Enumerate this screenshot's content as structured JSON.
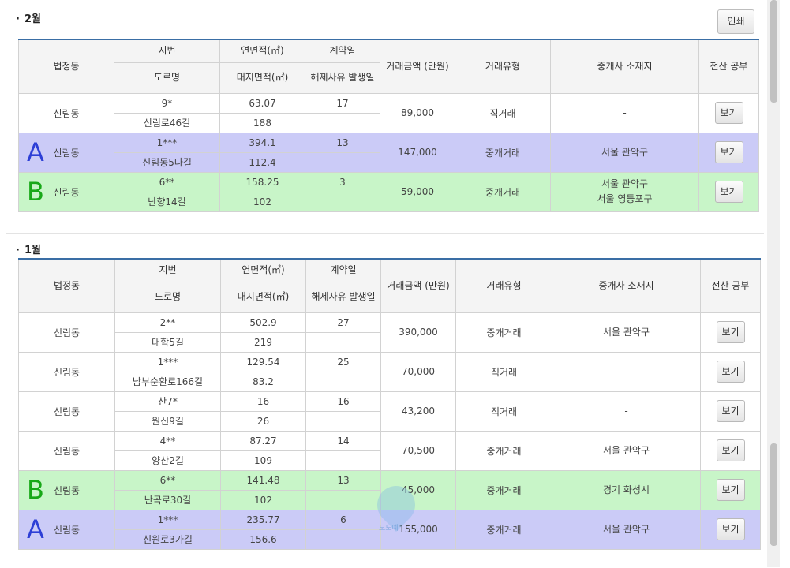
{
  "sections": [
    {
      "title": "2월",
      "print_label": "인쇄",
      "headers": {
        "dong": "법정동",
        "jibun": "지번",
        "road": "도로명",
        "area": "연면적(㎡)",
        "land_area": "대지면적(㎡)",
        "contract_day": "계약일",
        "cancel_date": "해제사유 발생일",
        "price": "거래금액 (만원)",
        "deal_type": "거래유형",
        "broker": "중개사 소재지",
        "registry": "전산 공부"
      },
      "rows": [
        {
          "mark": "",
          "dong": "신림동",
          "jibun": "9*",
          "road": "신림로46길",
          "area": "63.07",
          "land_area": "188",
          "day": "17",
          "cancel": "",
          "price": "89,000",
          "type": "직거래",
          "broker1": "-",
          "broker2": "",
          "view": "보기"
        },
        {
          "mark": "A",
          "dong": "신림동",
          "jibun": "1***",
          "road": "신림동5나길",
          "area": "394.1",
          "land_area": "112.4",
          "day": "13",
          "cancel": "",
          "price": "147,000",
          "type": "중개거래",
          "broker1": "서울 관악구",
          "broker2": "",
          "view": "보기"
        },
        {
          "mark": "B",
          "dong": "신림동",
          "jibun": "6**",
          "road": "난향14길",
          "area": "158.25",
          "land_area": "102",
          "day": "3",
          "cancel": "",
          "price": "59,000",
          "type": "중개거래",
          "broker1": "서울 관악구",
          "broker2": "서울 영등포구",
          "view": "보기"
        }
      ]
    },
    {
      "title": "1월",
      "headers": {
        "dong": "법정동",
        "jibun": "지번",
        "road": "도로명",
        "area": "연면적(㎡)",
        "land_area": "대지면적(㎡)",
        "contract_day": "계약일",
        "cancel_date": "해제사유 발생일",
        "price": "거래금액 (만원)",
        "deal_type": "거래유형",
        "broker": "중개사 소재지",
        "registry": "전산 공부"
      },
      "rows": [
        {
          "mark": "",
          "dong": "신림동",
          "jibun": "2**",
          "road": "대학5길",
          "area": "502.9",
          "land_area": "219",
          "day": "27",
          "cancel": "",
          "price": "390,000",
          "type": "중개거래",
          "broker1": "서울 관악구",
          "broker2": "",
          "view": "보기"
        },
        {
          "mark": "",
          "dong": "신림동",
          "jibun": "1***",
          "road": "남부순환로166길",
          "area": "129.54",
          "land_area": "83.2",
          "day": "25",
          "cancel": "",
          "price": "70,000",
          "type": "직거래",
          "broker1": "-",
          "broker2": "",
          "view": "보기"
        },
        {
          "mark": "",
          "dong": "신림동",
          "jibun": "산7*",
          "road": "원신9길",
          "area": "16",
          "land_area": "26",
          "day": "16",
          "cancel": "",
          "price": "43,200",
          "type": "직거래",
          "broker1": "-",
          "broker2": "",
          "view": "보기"
        },
        {
          "mark": "",
          "dong": "신림동",
          "jibun": "4**",
          "road": "양산2길",
          "area": "87.27",
          "land_area": "109",
          "day": "14",
          "cancel": "",
          "price": "70,500",
          "type": "중개거래",
          "broker1": "서울 관악구",
          "broker2": "",
          "view": "보기"
        },
        {
          "mark": "B",
          "dong": "신림동",
          "jibun": "6**",
          "road": "난곡로30길",
          "area": "141.48",
          "land_area": "102",
          "day": "13",
          "cancel": "",
          "price": "45,000",
          "type": "중개거래",
          "broker1": "경기 화성시",
          "broker2": "",
          "view": "보기"
        },
        {
          "mark": "A",
          "dong": "신림동",
          "jibun": "1***",
          "road": "신원로3가길",
          "area": "235.77",
          "land_area": "156.6",
          "day": "6",
          "cancel": "",
          "price": "155,000",
          "type": "중개거래",
          "broker1": "서울 관악구",
          "broker2": "",
          "view": "보기"
        }
      ]
    }
  ],
  "highlight_colors": {
    "A": "#cbcbf7",
    "B": "#c8f5c8",
    "A_letter": "#2d3fd6",
    "B_letter": "#18a818"
  },
  "watermark_text": "도도예"
}
